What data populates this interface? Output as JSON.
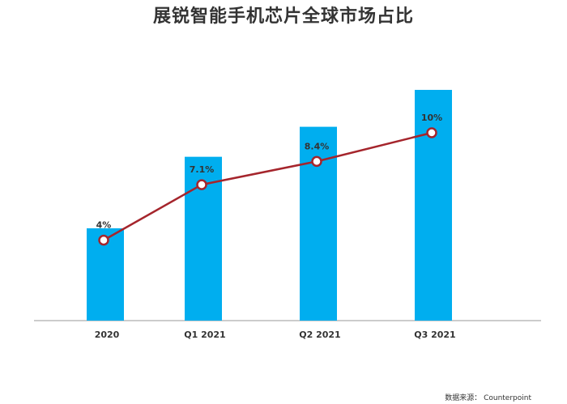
{
  "chart_data": {
    "type": "bar",
    "title": "展锐智能手机芯片全球市场占比",
    "categories": [
      "2020",
      "Q1 2021",
      "Q2 2021",
      "Q3 2021"
    ],
    "values": [
      4,
      7.1,
      8.4,
      10
    ],
    "data_labels": [
      "4%",
      "7.1%",
      "8.4%",
      "10%"
    ],
    "overlay": "line",
    "colors": {
      "bar": "#00AEEF",
      "line": "#A5252C",
      "axis": "#999999"
    },
    "grid": false
  },
  "source": "数据来源： Counterpoint"
}
